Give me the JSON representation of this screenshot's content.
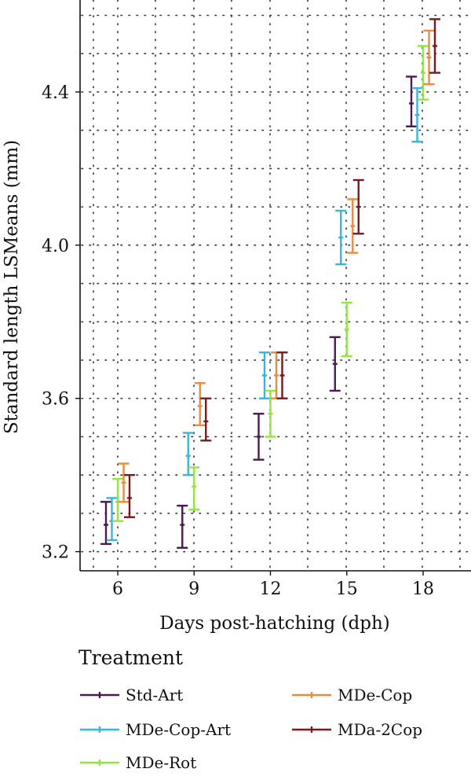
{
  "chart_data": {
    "type": "errorbar",
    "xlabel": "Days post-hatching (dph)",
    "ylabel": "Standard length LSMeans (mm)",
    "x_ticks": [
      "6",
      "9",
      "12",
      "15",
      "18"
    ],
    "y_ticks": [
      "3.2",
      "3.6",
      "4.0",
      "4.4"
    ],
    "ylim": [
      3.15,
      4.64
    ],
    "grid": true,
    "legend_title": "Treatment",
    "legend_position": "bottom",
    "series": [
      {
        "name": "Std-Art",
        "color": "#4a1a50",
        "points": [
          {
            "x": 6,
            "mean": 3.27,
            "low": 3.22,
            "high": 3.33
          },
          {
            "x": 9,
            "mean": 3.27,
            "low": 3.21,
            "high": 3.32
          },
          {
            "x": 12,
            "mean": 3.5,
            "low": 3.44,
            "high": 3.56
          },
          {
            "x": 15,
            "mean": 3.69,
            "low": 3.62,
            "high": 3.76
          },
          {
            "x": 18,
            "mean": 4.37,
            "low": 4.31,
            "high": 4.44
          }
        ]
      },
      {
        "name": "MDe-Cop-Art",
        "color": "#35b6e0",
        "points": [
          {
            "x": 6,
            "mean": 3.28,
            "low": 3.23,
            "high": 3.34
          },
          {
            "x": 9,
            "mean": 3.45,
            "low": 3.4,
            "high": 3.51
          },
          {
            "x": 12,
            "mean": 3.66,
            "low": 3.6,
            "high": 3.72
          },
          {
            "x": 15,
            "mean": 4.02,
            "low": 3.95,
            "high": 4.09
          },
          {
            "x": 18,
            "mean": 4.34,
            "low": 4.27,
            "high": 4.41
          }
        ]
      },
      {
        "name": "MDe-Rot",
        "color": "#8fe83a",
        "points": [
          {
            "x": 6,
            "mean": 3.33,
            "low": 3.28,
            "high": 3.39
          },
          {
            "x": 9,
            "mean": 3.37,
            "low": 3.31,
            "high": 3.42
          },
          {
            "x": 12,
            "mean": 3.56,
            "low": 3.5,
            "high": 3.62
          },
          {
            "x": 15,
            "mean": 3.78,
            "low": 3.71,
            "high": 3.85
          },
          {
            "x": 18,
            "mean": 4.45,
            "low": 4.38,
            "high": 4.52
          }
        ]
      },
      {
        "name": "MDe-Cop",
        "color": "#ef8a3c",
        "points": [
          {
            "x": 6,
            "mean": 3.38,
            "low": 3.33,
            "high": 3.43
          },
          {
            "x": 9,
            "mean": 3.58,
            "low": 3.53,
            "high": 3.64
          },
          {
            "x": 12,
            "mean": 3.66,
            "low": 3.6,
            "high": 3.72
          },
          {
            "x": 15,
            "mean": 4.05,
            "low": 3.98,
            "high": 4.12
          },
          {
            "x": 18,
            "mean": 4.49,
            "low": 4.42,
            "high": 4.56
          }
        ]
      },
      {
        "name": "MDa-2Cop",
        "color": "#7a1a1e",
        "points": [
          {
            "x": 6,
            "mean": 3.34,
            "low": 3.29,
            "high": 3.4
          },
          {
            "x": 9,
            "mean": 3.54,
            "low": 3.49,
            "high": 3.6
          },
          {
            "x": 12,
            "mean": 3.66,
            "low": 3.6,
            "high": 3.72
          },
          {
            "x": 15,
            "mean": 4.1,
            "low": 4.03,
            "high": 4.17
          },
          {
            "x": 18,
            "mean": 4.52,
            "low": 4.45,
            "high": 4.59
          }
        ]
      }
    ]
  }
}
